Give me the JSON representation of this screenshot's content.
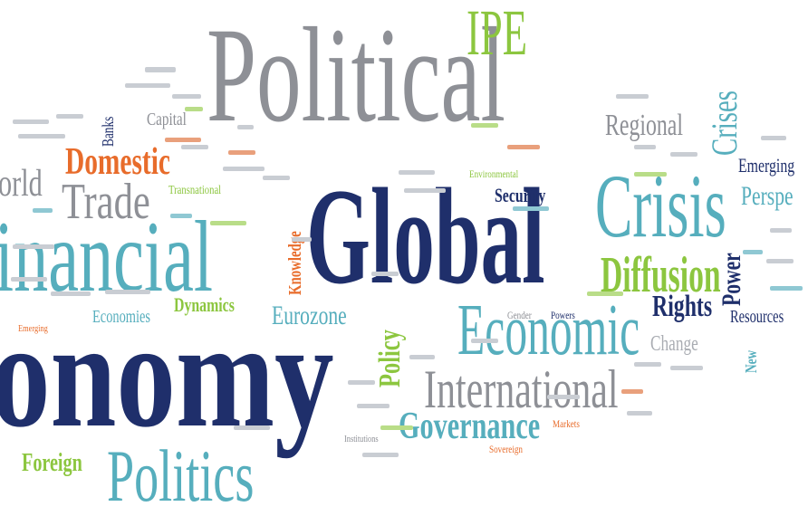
{
  "colors": {
    "navy": "#1f2f6b",
    "gray": "#8e9096",
    "teal": "#56aebd",
    "green": "#8cc63f",
    "orange": "#e86c2b",
    "light_gray": "#a9acb2"
  },
  "words": {
    "political": "Political",
    "global": "Global",
    "economy": "onomy",
    "financial": "inancial",
    "crisis": "Crisis",
    "ipe": "IPE",
    "economic": "Economic",
    "international": "International",
    "governance": "Governance",
    "politics": "Politics",
    "domestic": "Domestic",
    "trade": "Trade",
    "world": "orld",
    "diffusion": "Diffusion",
    "rights": "Rights",
    "power": "Power",
    "crises": "Crises",
    "regional": "Regional",
    "eurozone": "Eurozone",
    "policy": "Policy",
    "foreign": "Foreign",
    "security": "Security",
    "dynamics": "Dynamics",
    "economies": "Economies",
    "change": "Change",
    "resources": "Resources",
    "emerging": "Emerging",
    "perspectives": "Perspe",
    "knowledge": "Knowledge",
    "banks": "Banks",
    "capital": "Capital",
    "transnational": "Transnational",
    "new": "New",
    "gender": "Gender",
    "powers": "Powers",
    "environmental": "Environmental",
    "sovereign": "Sovereign",
    "markets": "Markets",
    "institutions": "Institutions",
    "emerging2": "Emerging"
  }
}
